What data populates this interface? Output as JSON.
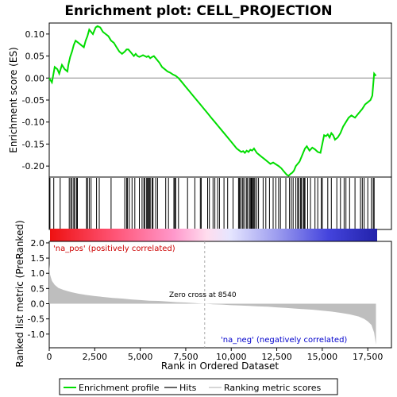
{
  "chart_data": {
    "type": "line",
    "title": "Enrichment plot: CELL_PROJECTION",
    "top_panel": {
      "ylabel": "Enrichment score (ES)",
      "ylim": [
        -0.225,
        0.125
      ],
      "yticks": [
        0.1,
        0.05,
        0.0,
        -0.05,
        -0.1,
        -0.15,
        -0.2
      ],
      "ytick_labels": [
        "0.10",
        "0.05",
        "0.00",
        "-0.05",
        "-0.10",
        "-0.15",
        "-0.20"
      ],
      "series": [
        {
          "name": "Enrichment profile",
          "color": "#00dd00",
          "x": [
            0,
            150,
            300,
            450,
            550,
            700,
            850,
            1000,
            1050,
            1150,
            1250,
            1350,
            1450,
            1600,
            1750,
            1900,
            2000,
            2100,
            2200,
            2300,
            2400,
            2550,
            2650,
            2800,
            2950,
            3100,
            3250,
            3400,
            3550,
            3700,
            3850,
            4000,
            4150,
            4250,
            4350,
            4450,
            4550,
            4650,
            4750,
            4850,
            4950,
            5050,
            5150,
            5250,
            5350,
            5450,
            5550,
            5650,
            5750,
            5850,
            5950,
            6050,
            6200,
            6350,
            6500,
            6650,
            6800,
            6950,
            7100,
            7300,
            7500,
            7700,
            7900,
            8100,
            8300,
            8500,
            8700,
            8900,
            9100,
            9300,
            9500,
            9700,
            9900,
            10100,
            10300,
            10450,
            10550,
            10650,
            10750,
            10850,
            10950,
            11050,
            11150,
            11250,
            11400,
            11550,
            11700,
            11850,
            12000,
            12150,
            12300,
            12450,
            12600,
            12750,
            12850,
            12950,
            13050,
            13150,
            13250,
            13350,
            13450,
            13550,
            13650,
            13750,
            13850,
            13950,
            14050,
            14150,
            14300,
            14450,
            14600,
            14750,
            14900,
            15000,
            15100,
            15200,
            15300,
            15400,
            15500,
            15600,
            15700,
            15850,
            16000,
            16150,
            16300,
            16450,
            16600,
            16800,
            17000,
            17200,
            17350,
            17500,
            17650,
            17750,
            17850,
            17950
          ],
          "y": [
            0.0,
            -0.01,
            0.025,
            0.02,
            0.01,
            0.03,
            0.02,
            0.015,
            0.03,
            0.048,
            0.06,
            0.075,
            0.085,
            0.08,
            0.075,
            0.07,
            0.085,
            0.095,
            0.11,
            0.105,
            0.1,
            0.115,
            0.118,
            0.115,
            0.105,
            0.1,
            0.095,
            0.085,
            0.08,
            0.07,
            0.06,
            0.055,
            0.06,
            0.065,
            0.065,
            0.06,
            0.055,
            0.05,
            0.055,
            0.05,
            0.048,
            0.05,
            0.052,
            0.05,
            0.048,
            0.05,
            0.045,
            0.048,
            0.05,
            0.045,
            0.04,
            0.035,
            0.025,
            0.02,
            0.015,
            0.012,
            0.008,
            0.005,
            0.0,
            -0.01,
            -0.02,
            -0.03,
            -0.04,
            -0.05,
            -0.06,
            -0.07,
            -0.08,
            -0.09,
            -0.1,
            -0.11,
            -0.12,
            -0.13,
            -0.14,
            -0.15,
            -0.16,
            -0.165,
            -0.168,
            -0.166,
            -0.17,
            -0.165,
            -0.168,
            -0.163,
            -0.165,
            -0.16,
            -0.17,
            -0.175,
            -0.18,
            -0.185,
            -0.19,
            -0.195,
            -0.192,
            -0.196,
            -0.2,
            -0.205,
            -0.21,
            -0.215,
            -0.22,
            -0.222,
            -0.218,
            -0.215,
            -0.21,
            -0.2,
            -0.195,
            -0.19,
            -0.18,
            -0.17,
            -0.16,
            -0.155,
            -0.165,
            -0.158,
            -0.162,
            -0.168,
            -0.17,
            -0.15,
            -0.13,
            -0.132,
            -0.128,
            -0.135,
            -0.125,
            -0.13,
            -0.14,
            -0.135,
            -0.125,
            -0.11,
            -0.1,
            -0.09,
            -0.085,
            -0.09,
            -0.08,
            -0.07,
            -0.06,
            -0.055,
            -0.05,
            -0.04,
            0.01,
            0.005
          ]
        }
      ]
    },
    "hits_panel": {
      "hit_positions": [
        40,
        250,
        600,
        1100,
        1180,
        1250,
        1350,
        1400,
        1500,
        1550,
        2050,
        2100,
        2200,
        2300,
        2600,
        2750,
        3400,
        4150,
        4250,
        4300,
        4400,
        4550,
        4700,
        4950,
        5100,
        5200,
        5250,
        5350,
        5400,
        5450,
        5500,
        5550,
        5650,
        5700,
        5850,
        5950,
        6400,
        6550,
        6850,
        6900,
        6950,
        7100,
        7600,
        8000,
        8300,
        8350,
        8700,
        8800,
        9000,
        9100,
        9250,
        9350,
        9600,
        9800,
        10100,
        10400,
        10450,
        10500,
        10600,
        10650,
        10750,
        10850,
        10900,
        11000,
        11050,
        11100,
        11150,
        11200,
        11250,
        11300,
        11400,
        11500,
        11750,
        11900,
        12100,
        12300,
        12450,
        12600,
        12700,
        13000,
        13200,
        13300,
        13400,
        13550,
        13650,
        13700,
        13800,
        13850,
        13950,
        14000,
        14050,
        14200,
        14350,
        14600,
        14750,
        14950,
        15000,
        15300,
        15500,
        15800,
        16000,
        16200,
        16300,
        16500,
        16800,
        17100,
        17200,
        17300,
        17500,
        17700,
        17800,
        17850
      ]
    },
    "ranking_panel": {
      "ylabel": "Ranked list metric (PreRanked)",
      "xlabel": "Rank in Ordered Dataset",
      "xlim": [
        0,
        18800
      ],
      "ylim": [
        -1.45,
        2.05
      ],
      "xticks": [
        0,
        2500,
        5000,
        7500,
        10000,
        12500,
        15000,
        17500
      ],
      "xtick_labels": [
        "0",
        "2,500",
        "5,000",
        "7,500",
        "10,000",
        "12,500",
        "15,000",
        "17,500"
      ],
      "yticks": [
        2.0,
        1.5,
        1.0,
        0.5,
        0.0,
        -0.5,
        -1.0
      ],
      "ytick_labels": [
        "2.0",
        "1.5",
        "1.0",
        "0.5",
        "0.0",
        "-0.5",
        "-1.0"
      ],
      "metric_x": [
        0,
        50,
        150,
        300,
        500,
        800,
        1200,
        1600,
        2000,
        2500,
        3000,
        3500,
        4000,
        4500,
        5000,
        5500,
        6000,
        6500,
        7000,
        7500,
        8000,
        8540,
        9000,
        9500,
        10000,
        10500,
        11000,
        11500,
        12000,
        12500,
        13000,
        13500,
        14000,
        14500,
        15000,
        15500,
        16000,
        16500,
        17000,
        17300,
        17500,
        17700,
        17850,
        17950
      ],
      "metric_y": [
        1.3,
        0.95,
        0.75,
        0.62,
        0.52,
        0.45,
        0.38,
        0.33,
        0.29,
        0.25,
        0.22,
        0.19,
        0.17,
        0.14,
        0.12,
        0.1,
        0.09,
        0.07,
        0.05,
        0.04,
        0.02,
        0.0,
        -0.02,
        -0.03,
        -0.05,
        -0.06,
        -0.07,
        -0.09,
        -0.1,
        -0.12,
        -0.14,
        -0.16,
        -0.18,
        -0.2,
        -0.23,
        -0.26,
        -0.3,
        -0.35,
        -0.42,
        -0.5,
        -0.58,
        -0.7,
        -0.95,
        -1.35
      ],
      "zero_cross_label": "Zero cross at 8540",
      "zero_cross": 8540,
      "pos_label": "'na_pos' (positively correlated)",
      "neg_label": "'na_neg' (negatively correlated)"
    },
    "legend": {
      "placement": "bottom",
      "entries": [
        {
          "label": "Enrichment profile",
          "color": "#00dd00"
        },
        {
          "label": "Hits",
          "color": "#000000"
        },
        {
          "label": "Ranking metric scores",
          "color": "#bbbbbb"
        }
      ]
    },
    "colors": {
      "profile": "#00dd00",
      "hits": "#000000",
      "metric_fill": "#bebebe",
      "pos_text": "#cc0000",
      "neg_text": "#0000cc",
      "zero_line": "#aaaaaa"
    }
  }
}
